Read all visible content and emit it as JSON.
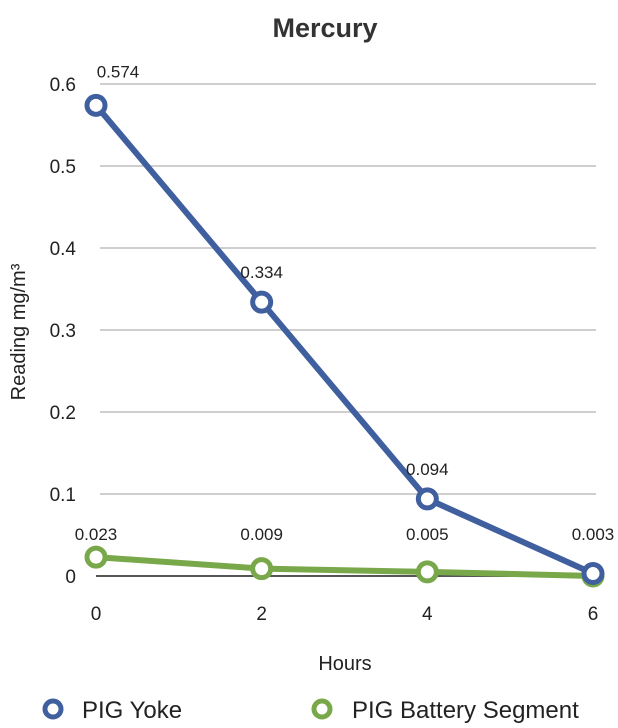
{
  "chart_data": {
    "type": "line",
    "title": "Mercury",
    "xlabel": "Hours",
    "ylabel": "Reading mg/m³",
    "x": [
      0,
      2,
      4,
      6
    ],
    "x_tick_labels": [
      "0",
      "2",
      "4",
      "6"
    ],
    "y_tick_labels": [
      "0",
      "0.1",
      "0.2",
      "0.3",
      "0.4",
      "0.5",
      "0.6"
    ],
    "ylim": [
      0,
      0.6
    ],
    "grid": true,
    "legend_position": "bottom",
    "series": [
      {
        "name": "PIG Yoke",
        "color": "#3f5f9f",
        "values": [
          0.574,
          0.334,
          0.094,
          0.003
        ],
        "labels": [
          "0.574",
          "0.334",
          "0.094",
          "0.003"
        ]
      },
      {
        "name": "PIG Battery Segment",
        "color": "#79a84a",
        "values": [
          0.023,
          0.009,
          0.005,
          0
        ],
        "labels": [
          "0.023",
          "0.009",
          "0.005",
          ""
        ]
      }
    ]
  }
}
